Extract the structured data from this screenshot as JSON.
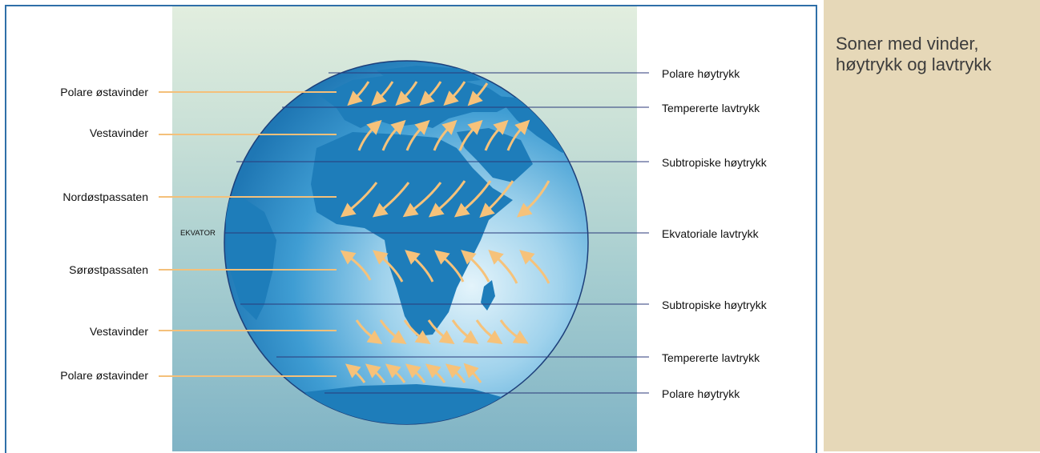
{
  "side_title": "Soner med vinder, høytrykk og lavtrykk",
  "left_labels": [
    "Polare østavinder",
    "Vestavinder",
    "Nordøstpassaten",
    "Sørøstpassaten",
    "Vestavinder",
    "Polare østavinder"
  ],
  "right_labels": [
    "Polare høytrykk",
    "Tempererte lavtrykk",
    "Subtropiske høytrykk",
    "Ekvatoriale lavtrykk",
    "Subtropiske høytrykk",
    "Tempererte lavtrykk",
    "Polare høytrykk"
  ],
  "equator_label": "EKVATOR",
  "colors": {
    "frame": "#2f6fa8",
    "ocean": "#2a8cc6",
    "land": "#1778b4",
    "arrow": "#f6c27a",
    "line": "#2b3a7a",
    "side_panel": "#e6d8b8"
  }
}
